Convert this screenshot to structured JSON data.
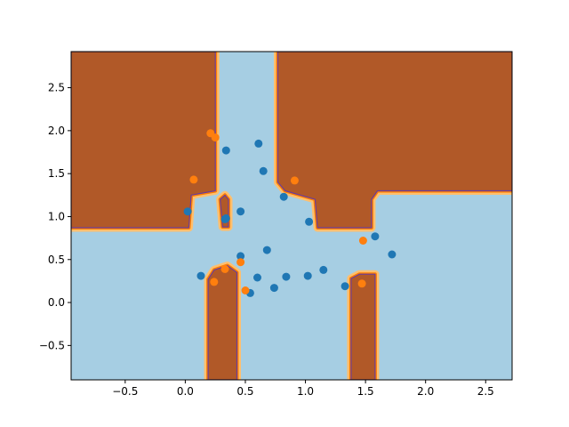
{
  "chart_data": {
    "type": "scatter",
    "title": "",
    "xlabel": "",
    "ylabel": "",
    "xlim": [
      -0.95,
      2.72
    ],
    "ylim": [
      -0.9,
      2.92
    ],
    "grid": false,
    "legend": "none",
    "x_ticks": [
      -0.5,
      0.0,
      0.5,
      1.0,
      1.5,
      2.0,
      2.5
    ],
    "x_tick_labels": [
      "−0.5",
      "0.0",
      "0.5",
      "1.0",
      "1.5",
      "2.0",
      "2.5"
    ],
    "y_ticks": [
      -0.5,
      0.0,
      0.5,
      1.0,
      1.5,
      2.0,
      2.5
    ],
    "y_tick_labels": [
      "−0.5",
      "0.0",
      "0.5",
      "1.0",
      "1.5",
      "2.0",
      "2.5"
    ],
    "decision_regions": {
      "background_color": "#a6cee3",
      "region_color": "#b15928",
      "boundary_color": "#fdbf6f",
      "regions": [
        [
          [
            -0.95,
            2.92
          ],
          [
            0.25,
            2.92
          ],
          [
            0.25,
            1.3
          ],
          [
            0.05,
            1.25
          ],
          [
            0.03,
            0.87
          ],
          [
            -0.95,
            0.87
          ]
        ],
        [
          [
            0.77,
            2.92
          ],
          [
            2.72,
            2.92
          ],
          [
            2.72,
            1.3
          ],
          [
            1.6,
            1.3
          ],
          [
            1.55,
            1.2
          ],
          [
            1.55,
            0.87
          ],
          [
            1.1,
            0.87
          ],
          [
            1.08,
            1.2
          ],
          [
            0.83,
            1.3
          ],
          [
            0.77,
            1.4
          ]
        ],
        [
          [
            0.29,
            1.2
          ],
          [
            0.33,
            1.25
          ],
          [
            0.36,
            1.2
          ],
          [
            0.36,
            0.88
          ],
          [
            0.31,
            0.88
          ]
        ],
        [
          [
            0.19,
            -0.9
          ],
          [
            0.43,
            -0.9
          ],
          [
            0.43,
            0.35
          ],
          [
            0.35,
            0.43
          ],
          [
            0.24,
            0.38
          ],
          [
            0.19,
            0.27
          ]
        ],
        [
          [
            1.38,
            -0.9
          ],
          [
            1.58,
            -0.9
          ],
          [
            1.58,
            0.33
          ],
          [
            1.45,
            0.33
          ],
          [
            1.38,
            0.28
          ]
        ]
      ]
    },
    "series": [
      {
        "color": "#1f77b4",
        "points": [
          [
            0.02,
            1.06
          ],
          [
            0.34,
            0.98
          ],
          [
            0.33,
            0.97
          ],
          [
            0.34,
            1.77
          ],
          [
            0.61,
            1.85
          ],
          [
            0.65,
            1.53
          ],
          [
            0.46,
            1.06
          ],
          [
            0.82,
            1.23
          ],
          [
            1.03,
            0.94
          ],
          [
            1.58,
            0.77
          ],
          [
            1.72,
            0.56
          ],
          [
            0.68,
            0.61
          ],
          [
            0.46,
            0.54
          ],
          [
            0.13,
            0.31
          ],
          [
            0.6,
            0.29
          ],
          [
            0.54,
            0.11
          ],
          [
            0.74,
            0.17
          ],
          [
            0.84,
            0.3
          ],
          [
            1.02,
            0.31
          ],
          [
            1.15,
            0.38
          ],
          [
            1.33,
            0.19
          ]
        ]
      },
      {
        "color": "#ff7f0e",
        "points": [
          [
            0.21,
            1.97
          ],
          [
            0.25,
            1.92
          ],
          [
            0.07,
            1.43
          ],
          [
            0.91,
            1.42
          ],
          [
            1.48,
            0.72
          ],
          [
            0.46,
            0.47
          ],
          [
            0.33,
            0.39
          ],
          [
            0.24,
            0.24
          ],
          [
            0.5,
            0.14
          ],
          [
            1.47,
            0.22
          ]
        ]
      }
    ]
  }
}
